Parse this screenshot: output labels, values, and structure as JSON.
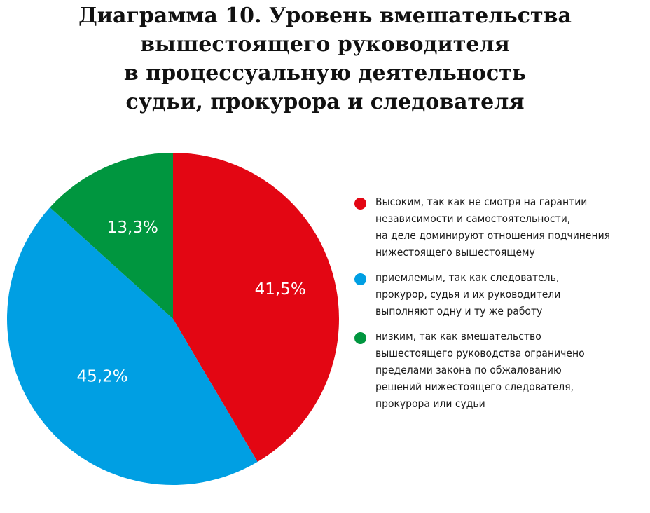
{
  "chart_data": {
    "type": "pie",
    "title_lines": [
      "Диаграмма 10. Уровень вмешательства",
      "вышестоящего руководителя",
      "в процессуальную деятельность",
      "судьи, прокурора и следователя"
    ],
    "slices": [
      {
        "value": 41.5,
        "label": "41,5%",
        "color": "#e30613",
        "legend_lines": [
          "Высоким, так как не смотря на гарантии",
          "независимости и самостоятельности,",
          "на деле доминируют отношения подчинения",
          "нижестоящего вышестоящему"
        ]
      },
      {
        "value": 45.2,
        "label": "45,2%",
        "color": "#009fe3",
        "legend_lines": [
          "приемлемым, так как следователь,",
          "прокурор, судья и их руководители",
          "выполняют одну и ту же работу"
        ]
      },
      {
        "value": 13.3,
        "label": "13,3%",
        "color": "#00963f",
        "legend_lines": [
          "низким, так как вмешательство",
          "вышестоящего руководства ограничено",
          "пределами закона по обжалованию",
          "решений нижестоящего следователя,",
          "прокурора или судьи"
        ]
      }
    ],
    "legend_position": "right"
  }
}
